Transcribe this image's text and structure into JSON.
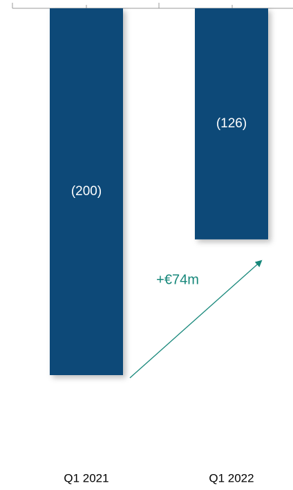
{
  "chart_data": {
    "type": "bar",
    "categories": [
      "Q1 2021",
      "Q1 2022"
    ],
    "values": [
      -200,
      -126
    ],
    "value_labels": [
      "(200)",
      "(126)"
    ],
    "color": "#0b4a78",
    "ylim": [
      -200,
      0
    ],
    "annotation": "+€74m",
    "annotation_color": "#16877a"
  }
}
